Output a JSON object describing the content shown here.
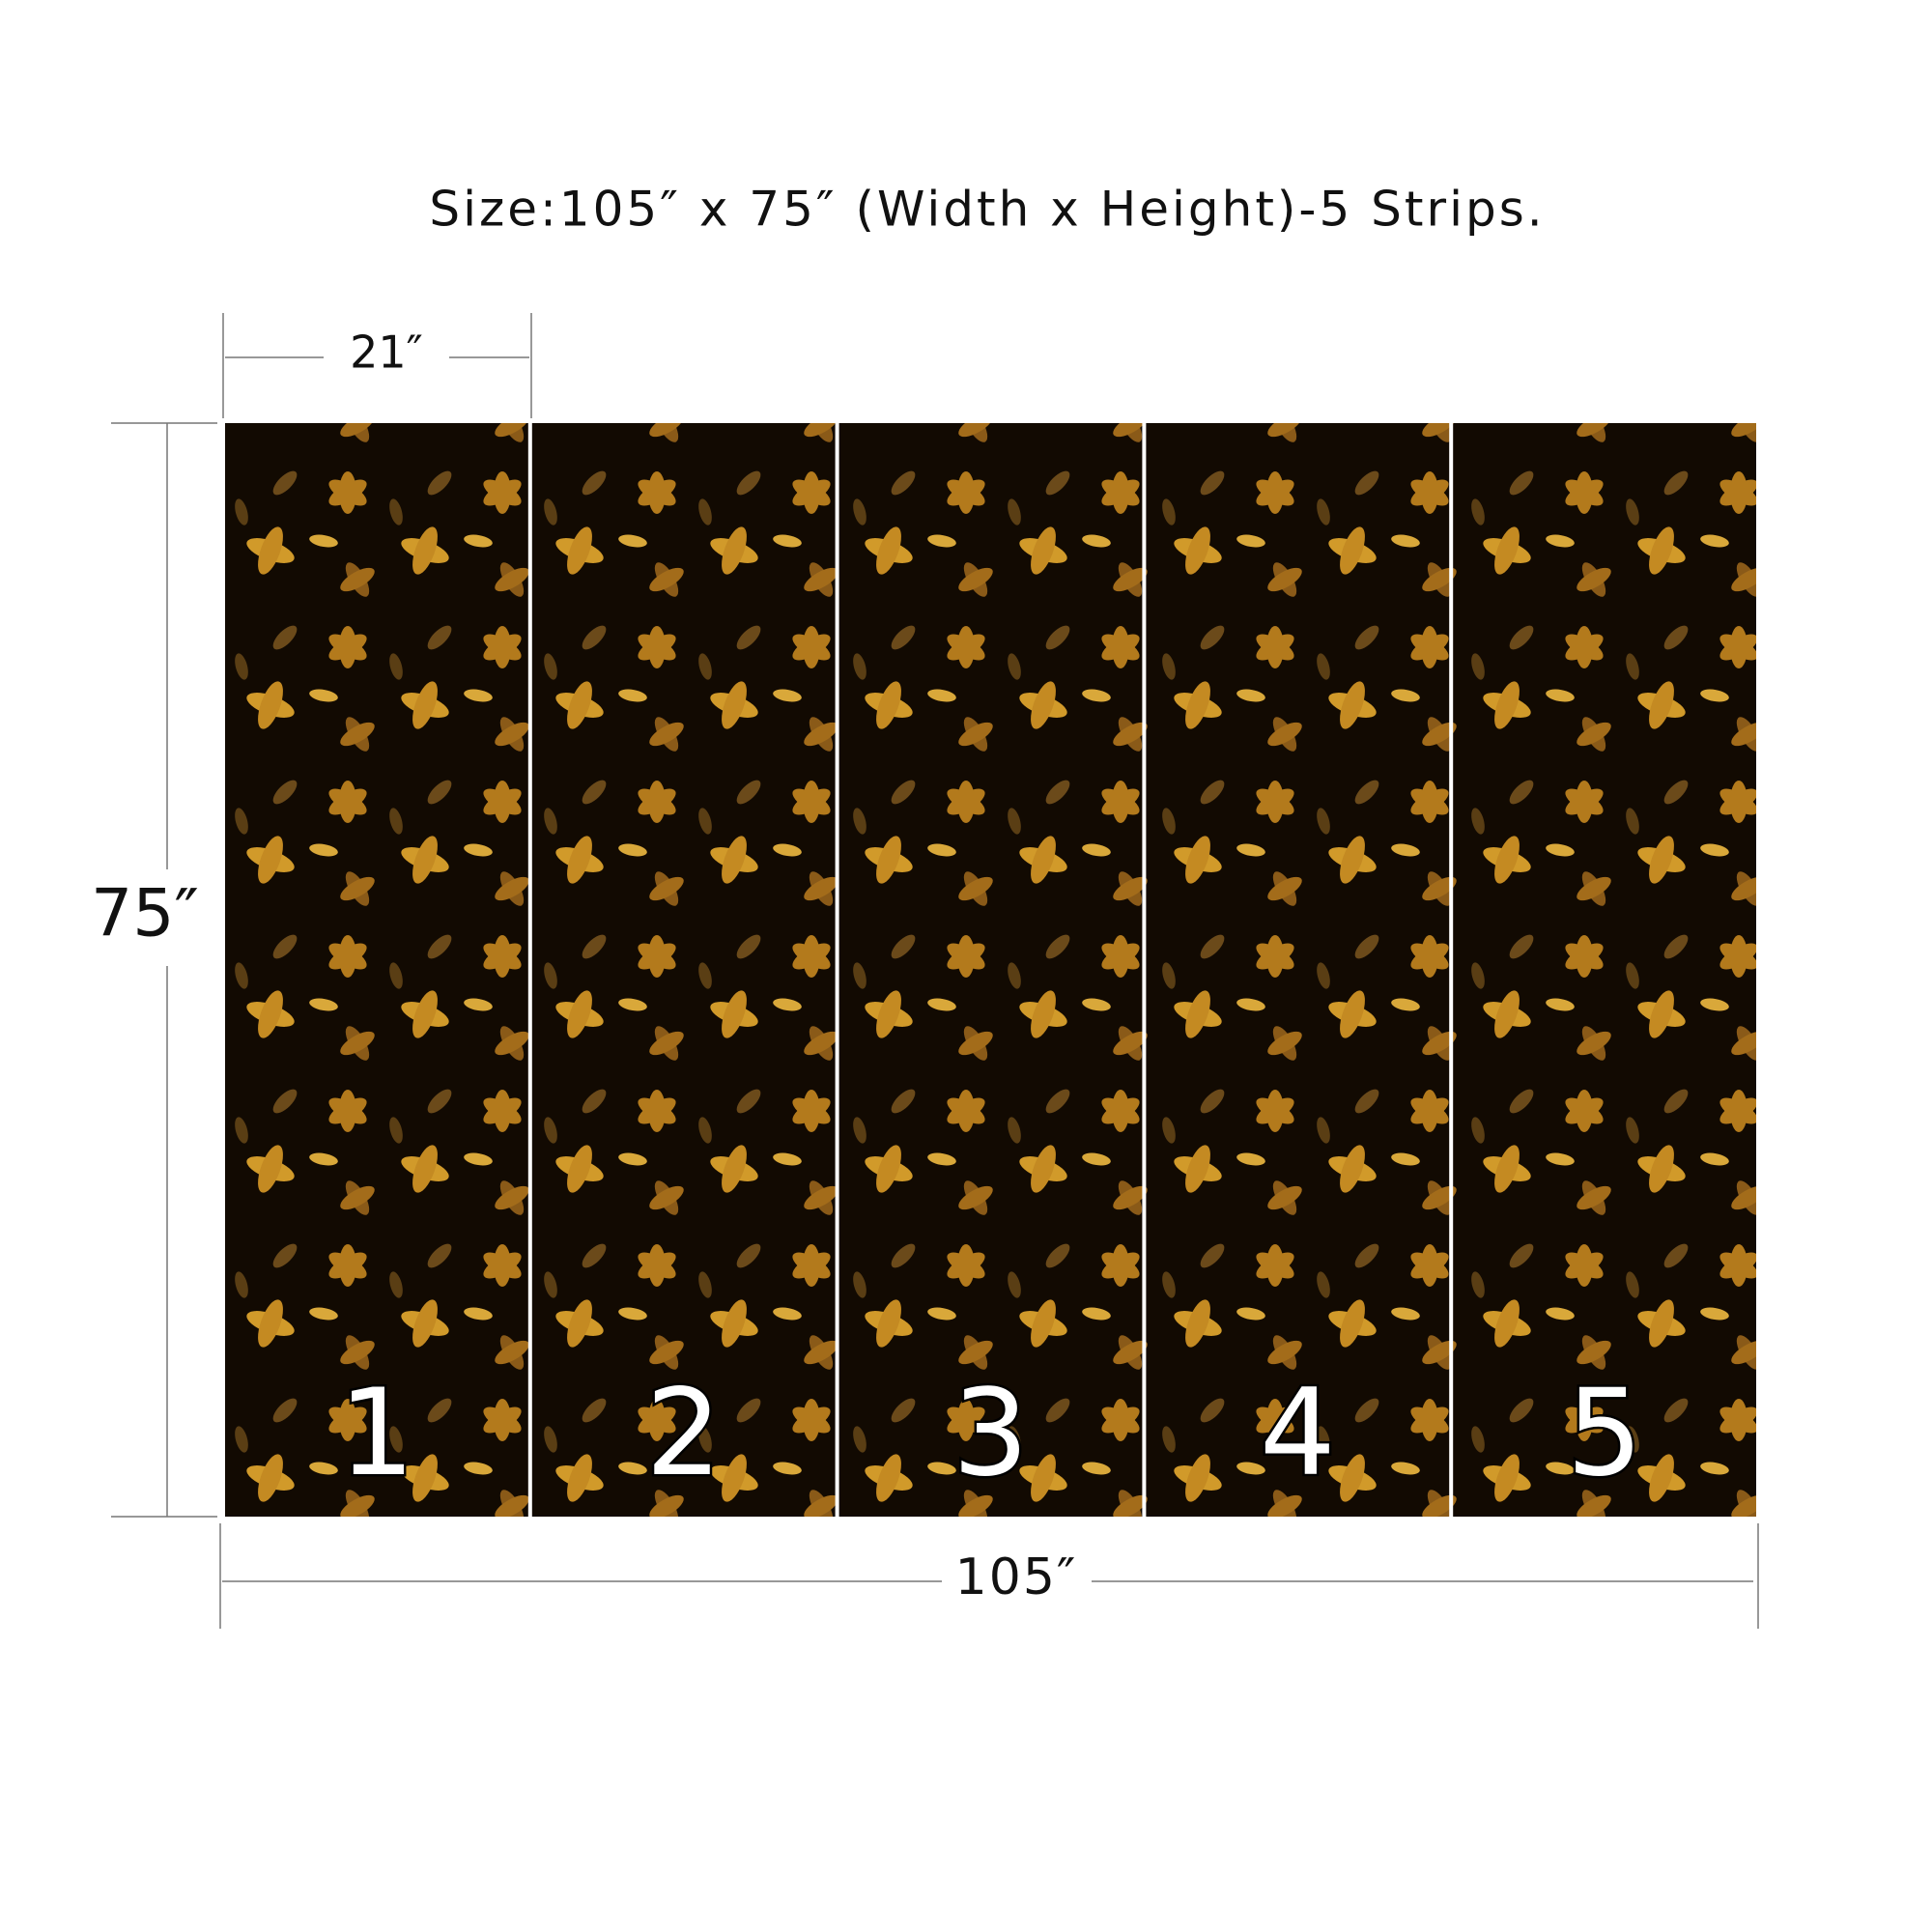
{
  "title": "Size:105″  x 75″  (Width x Height)-5 Strips.",
  "strip_width_label": "21″",
  "height_label": "75″",
  "width_label": "105″",
  "strips": [
    "1",
    "2",
    "3",
    "4",
    "5"
  ]
}
